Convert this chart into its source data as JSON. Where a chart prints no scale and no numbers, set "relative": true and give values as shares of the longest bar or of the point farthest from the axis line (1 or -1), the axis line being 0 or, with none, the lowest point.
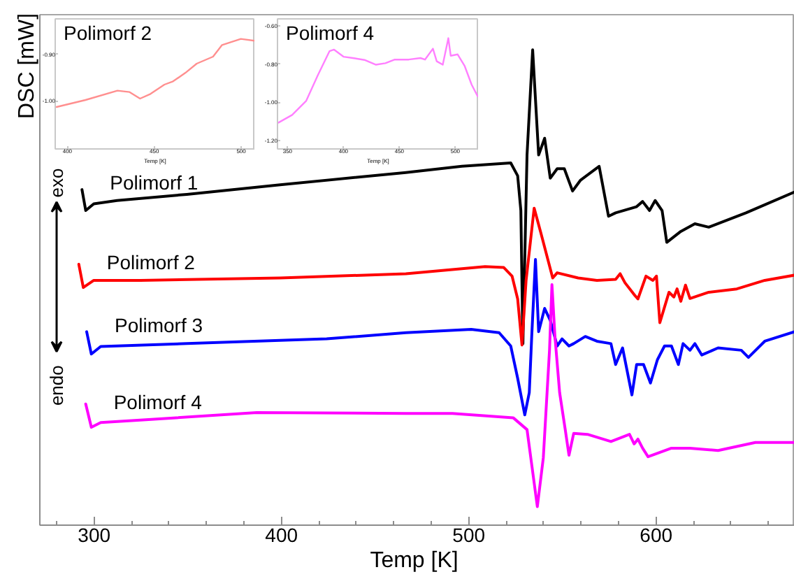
{
  "chart_data": [
    {
      "type": "line",
      "xlabel": "Temp  [K]",
      "ylabel": "DSC [mW]",
      "relative": true,
      "xlim": [
        271,
        674
      ],
      "xticks": [
        300,
        400,
        500,
        600
      ],
      "annotations": [
        "exo",
        "endo"
      ],
      "series": [
        {
          "name": "Polimorf 1",
          "color": "#000000",
          "x": [
            293.5,
            295.5,
            299.8,
            312.2,
            349.5,
            399.3,
            466.4,
            496.3,
            522.4,
            526.1,
            527.8,
            528.9,
            531.1,
            534.1,
            537.3,
            540.5,
            543.5,
            547.2,
            551.0,
            555.4,
            559.7,
            569.6,
            574.6,
            578.4,
            589.6,
            592.8,
            596.5,
            599.5,
            603.2,
            605.7,
            613.2,
            620.7,
            628.1,
            648.0,
            673.9
          ],
          "values": [
            0.706,
            0.662,
            0.676,
            0.683,
            0.696,
            0.716,
            0.742,
            0.755,
            0.762,
            0.735,
            0.662,
            0.382,
            0.779,
            1.0,
            0.779,
            0.814,
            0.73,
            0.75,
            0.75,
            0.703,
            0.726,
            0.755,
            0.65,
            0.657,
            0.67,
            0.681,
            0.662,
            0.683,
            0.662,
            0.595,
            0.618,
            0.634,
            0.627,
            0.657,
            0.701
          ]
        },
        {
          "name": "Polimorf 2",
          "color": "#ff0000",
          "x": [
            291.8,
            294.2,
            299.8,
            324.6,
            399.3,
            466.4,
            508.7,
            518.7,
            523.1,
            526.1,
            528.4,
            530.6,
            534.9,
            538.6,
            544.8,
            547.2,
            558.4,
            568.4,
            578.4,
            580.8,
            583.4,
            588.3,
            590.3,
            594.6,
            598.3,
            600.2,
            602.0,
            606.9,
            609.5,
            611.2,
            613.2,
            615.7,
            618.1,
            628.1,
            643.1,
            658.0,
            673.9
          ],
          "values": [
            0.549,
            0.5,
            0.515,
            0.515,
            0.52,
            0.529,
            0.544,
            0.542,
            0.524,
            0.476,
            0.379,
            0.515,
            0.667,
            0.613,
            0.52,
            0.531,
            0.52,
            0.515,
            0.517,
            0.529,
            0.51,
            0.485,
            0.476,
            0.524,
            0.515,
            0.524,
            0.426,
            0.49,
            0.48,
            0.497,
            0.471,
            0.505,
            0.477,
            0.49,
            0.497,
            0.515,
            0.526
          ]
        },
        {
          "name": "Polimorf 3",
          "color": "#0000ff",
          "x": [
            296.0,
            298.5,
            303.5,
            349.5,
            424.1,
            466.4,
            501.3,
            516.2,
            522.4,
            526.1,
            529.9,
            532.3,
            533.6,
            535.6,
            537.3,
            540.5,
            543.5,
            547.2,
            549.8,
            553.5,
            556.0,
            562.2,
            568.4,
            575.9,
            578.4,
            582.1,
            587.1,
            589.6,
            593.3,
            597.0,
            600.7,
            604.5,
            608.2,
            611.9,
            614.4,
            618.1,
            620.7,
            624.4,
            633.1,
            645.5,
            649.3,
            658.0,
            673.9
          ],
          "values": [
            0.407,
            0.36,
            0.376,
            0.382,
            0.392,
            0.405,
            0.412,
            0.405,
            0.377,
            0.309,
            0.232,
            0.279,
            0.397,
            0.559,
            0.407,
            0.456,
            0.431,
            0.377,
            0.392,
            0.377,
            0.382,
            0.397,
            0.387,
            0.382,
            0.338,
            0.373,
            0.274,
            0.338,
            0.338,
            0.299,
            0.348,
            0.377,
            0.377,
            0.338,
            0.382,
            0.368,
            0.382,
            0.358,
            0.373,
            0.368,
            0.353,
            0.387,
            0.407
          ]
        },
        {
          "name": "Polimorf 4",
          "color": "#ff00ff",
          "x": [
            295.5,
            298.5,
            303.5,
            324.6,
            386.8,
            466.4,
            491.3,
            523.7,
            531.1,
            536.6,
            539.8,
            543.1,
            544.4,
            546.0,
            548.5,
            551.5,
            553.5,
            556.0,
            563.4,
            575.9,
            585.8,
            588.3,
            590.3,
            592.8,
            595.7,
            608.2,
            618.1,
            633.1,
            653.0,
            673.9
          ],
          "values": [
            0.255,
            0.206,
            0.216,
            0.221,
            0.237,
            0.235,
            0.235,
            0.226,
            0.201,
            0.039,
            0.142,
            0.368,
            0.506,
            0.397,
            0.279,
            0.201,
            0.147,
            0.193,
            0.191,
            0.176,
            0.191,
            0.171,
            0.181,
            0.162,
            0.144,
            0.162,
            0.162,
            0.157,
            0.174,
            0.174
          ]
        }
      ]
    },
    {
      "type": "line",
      "title": "Polimorf 2",
      "xlabel": "Temp [K]",
      "color": "#ff8f8f",
      "xlim": [
        393,
        508
      ],
      "ylim": [
        -1.103,
        -0.824
      ],
      "xticks": [
        400,
        450,
        500
      ],
      "yticks": [
        {
          "value": -0.9,
          "label": "-0.90"
        },
        {
          "value": -1.0,
          "label": "-1.00"
        }
      ],
      "x": [
        393.8,
        410.4,
        428.8,
        435.8,
        441.8,
        447.8,
        455.8,
        460.8,
        467.8,
        474.4,
        483.8,
        489.0,
        499.8,
        507.8
      ],
      "values": [
        -1.013,
        -0.998,
        -0.978,
        -0.981,
        -0.995,
        -0.985,
        -0.965,
        -0.958,
        -0.94,
        -0.92,
        -0.905,
        -0.88,
        -0.867,
        -0.871
      ]
    },
    {
      "type": "line",
      "title": "Polimorf 4",
      "xlabel": "Temp [K]",
      "color": "#ff7fff",
      "xlim": [
        341,
        521
      ],
      "ylim": [
        -1.244,
        -0.563
      ],
      "xticks": [
        350,
        400,
        450,
        500
      ],
      "yticks": [
        {
          "value": -0.6,
          "label": "-0.60"
        },
        {
          "value": -0.8,
          "label": "-0.80"
        },
        {
          "value": -1.0,
          "label": "-1.00"
        },
        {
          "value": -1.2,
          "label": "-1.20"
        }
      ],
      "x": [
        341.6,
        354.1,
        366.6,
        377.1,
        387.5,
        391.6,
        400.0,
        408.4,
        418.8,
        429.1,
        437.5,
        445.9,
        458.4,
        468.8,
        472.9,
        480.0,
        483.4,
        488.8,
        493.8,
        495.9,
        502.1,
        508.4,
        514.6,
        520.0
      ],
      "values": [
        -1.107,
        -1.066,
        -0.993,
        -0.858,
        -0.732,
        -0.724,
        -0.761,
        -0.768,
        -0.778,
        -0.803,
        -0.795,
        -0.776,
        -0.776,
        -0.768,
        -0.776,
        -0.719,
        -0.785,
        -0.803,
        -0.664,
        -0.756,
        -0.749,
        -0.81,
        -0.907,
        -0.968
      ]
    }
  ]
}
